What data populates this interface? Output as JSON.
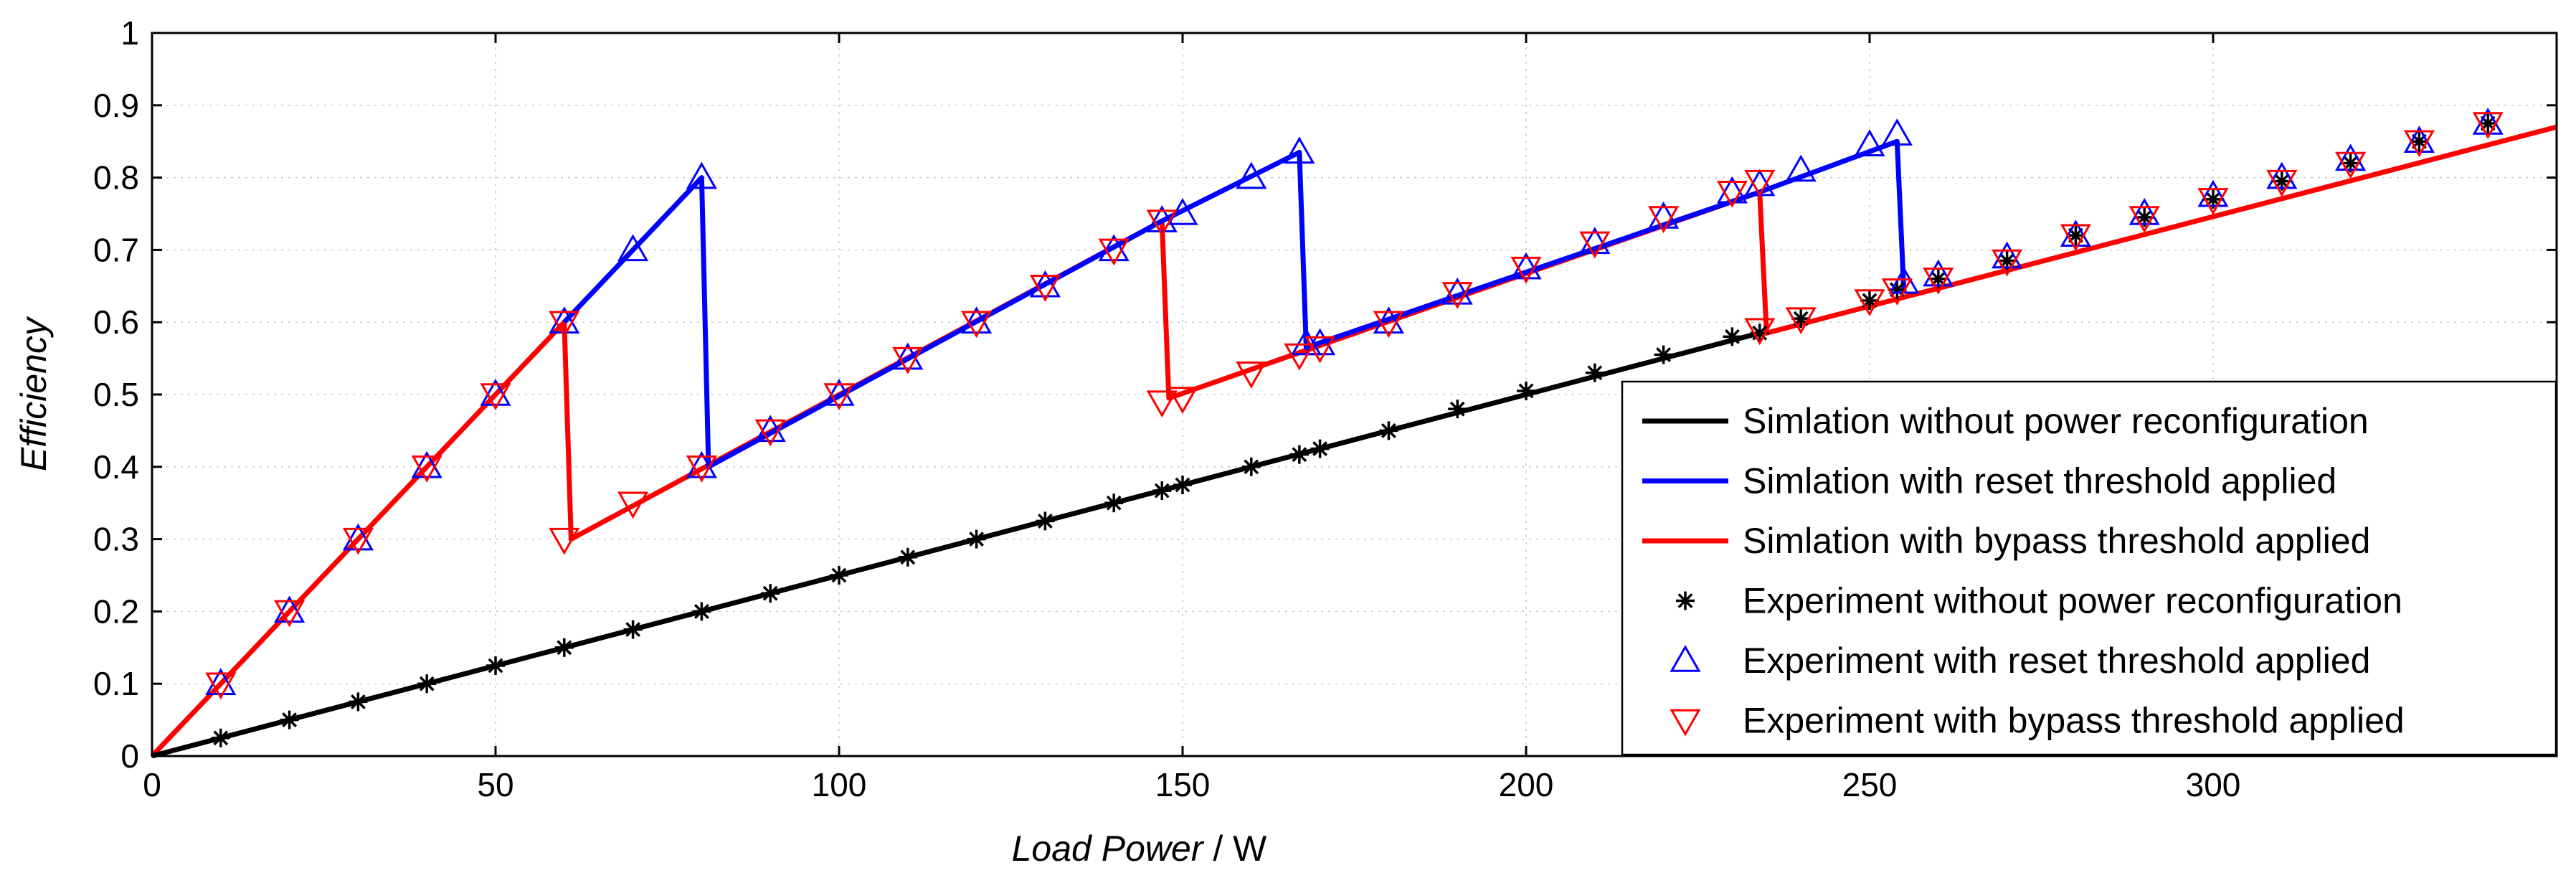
{
  "chart_data": {
    "type": "line",
    "title": "",
    "xlabel_italic": "Load Power",
    "xlabel_unit": " / W",
    "ylabel": "Efficiency",
    "xlim": [
      0,
      350
    ],
    "ylim": [
      0,
      1
    ],
    "xticks": [
      0,
      50,
      100,
      150,
      200,
      250,
      300
    ],
    "yticks": [
      0,
      0.1,
      0.2,
      0.3,
      0.4,
      0.5,
      0.6,
      0.7,
      0.8,
      0.9,
      1
    ],
    "ytick_labels": [
      "0",
      "0.1",
      "0.2",
      "0.3",
      "0.4",
      "0.5",
      "0.6",
      "0.7",
      "0.8",
      "0.9",
      "1"
    ],
    "grid": true,
    "legend_position": "bottom-right",
    "series": [
      {
        "name": "Simlation without power reconfiguration",
        "kind": "line",
        "color": "#000000",
        "x": [
          0,
          234
        ],
        "y": [
          0,
          0.585
        ]
      },
      {
        "name": "Simlation with reset threshold applied",
        "kind": "line",
        "color": "#0000ff",
        "x": [
          60,
          80,
          81,
          147,
          167,
          168,
          234,
          254,
          255
        ],
        "y": [
          0.6,
          0.8,
          0.4,
          0.74,
          0.835,
          0.565,
          0.78,
          0.85,
          0.64
        ]
      },
      {
        "name": "Simlation with bypass threshold applied",
        "kind": "line",
        "color": "#ff0000",
        "x": [
          0,
          60,
          61,
          147,
          148,
          234,
          235,
          350
        ],
        "y": [
          0,
          0.6,
          0.3,
          0.74,
          0.495,
          0.78,
          0.585,
          0.87
        ]
      },
      {
        "name": "Experiment without power reconfiguration",
        "kind": "star",
        "color": "#000000",
        "x": [
          10,
          20,
          30,
          40,
          50,
          60,
          70,
          80,
          90,
          100,
          110,
          120,
          130,
          140,
          147,
          150,
          160,
          167,
          170,
          180,
          190,
          200,
          210,
          220,
          230,
          234,
          240,
          250,
          254,
          260,
          270,
          280,
          290,
          300,
          310,
          320,
          330,
          340
        ],
        "y": [
          0.025,
          0.05,
          0.075,
          0.1,
          0.125,
          0.15,
          0.175,
          0.2,
          0.225,
          0.25,
          0.275,
          0.3,
          0.325,
          0.35,
          0.367,
          0.375,
          0.4,
          0.417,
          0.425,
          0.45,
          0.48,
          0.505,
          0.53,
          0.555,
          0.58,
          0.585,
          0.605,
          0.63,
          0.645,
          0.66,
          0.685,
          0.72,
          0.745,
          0.77,
          0.795,
          0.82,
          0.85,
          0.875
        ]
      },
      {
        "name": "Experiment with reset threshold applied",
        "kind": "triangle-up",
        "color": "#0000ff",
        "x": [
          10,
          20,
          30,
          40,
          50,
          60,
          70,
          80,
          80,
          90,
          100,
          110,
          120,
          130,
          140,
          147,
          150,
          160,
          167,
          168,
          170,
          180,
          190,
          200,
          210,
          220,
          230,
          234,
          240,
          250,
          254,
          255,
          260,
          270,
          280,
          290,
          300,
          310,
          320,
          330,
          340
        ],
        "y": [
          0.1,
          0.2,
          0.3,
          0.4,
          0.5,
          0.6,
          0.7,
          0.8,
          0.4,
          0.45,
          0.5,
          0.55,
          0.6,
          0.65,
          0.7,
          0.74,
          0.75,
          0.8,
          0.835,
          0.57,
          0.57,
          0.6,
          0.64,
          0.675,
          0.71,
          0.745,
          0.78,
          0.79,
          0.81,
          0.845,
          0.86,
          0.655,
          0.665,
          0.69,
          0.72,
          0.75,
          0.775,
          0.8,
          0.825,
          0.85,
          0.875
        ]
      },
      {
        "name": "Experiment with bypass threshold applied",
        "kind": "triangle-down",
        "color": "#ff0000",
        "x": [
          10,
          20,
          30,
          40,
          50,
          60,
          60,
          70,
          80,
          90,
          100,
          110,
          120,
          130,
          140,
          147,
          147,
          150,
          160,
          167,
          170,
          180,
          190,
          200,
          210,
          220,
          230,
          234,
          234,
          240,
          250,
          254,
          260,
          270,
          280,
          290,
          300,
          310,
          320,
          330,
          340
        ],
        "y": [
          0.1,
          0.2,
          0.3,
          0.4,
          0.5,
          0.6,
          0.3,
          0.35,
          0.4,
          0.45,
          0.5,
          0.55,
          0.6,
          0.65,
          0.7,
          0.74,
          0.49,
          0.495,
          0.53,
          0.555,
          0.565,
          0.6,
          0.64,
          0.675,
          0.71,
          0.745,
          0.78,
          0.795,
          0.59,
          0.605,
          0.63,
          0.645,
          0.66,
          0.685,
          0.72,
          0.745,
          0.77,
          0.795,
          0.82,
          0.85,
          0.875
        ]
      }
    ]
  }
}
